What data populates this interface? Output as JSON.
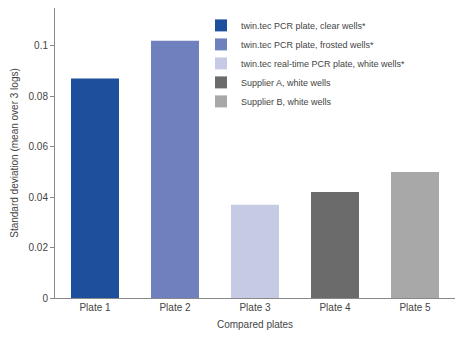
{
  "chart_data": {
    "type": "bar",
    "x_label": "Compared plates",
    "y_label": "Standard deviation (mean over 3 logs)",
    "categories": [
      "Plate 1",
      "Plate 2",
      "Plate 3",
      "Plate 4",
      "Plate 5"
    ],
    "series": [
      {
        "name": "twin.tec PCR plate, clear wells*",
        "color": "#1c4f9c",
        "values": [
          0.087,
          null,
          null,
          null,
          null
        ]
      },
      {
        "name": "twin.tec PCR plate, frosted wells*",
        "color": "#6e80bd",
        "values": [
          null,
          0.102,
          null,
          null,
          null
        ]
      },
      {
        "name": "twin.tec real-time PCR plate, white wells*",
        "color": "#c6cae4",
        "values": [
          null,
          null,
          0.037,
          null,
          null
        ]
      },
      {
        "name": "Supplier A, white wells",
        "color": "#6b6b6b",
        "values": [
          null,
          null,
          null,
          0.042,
          null
        ]
      },
      {
        "name": "Supplier B, white wells",
        "color": "#a8a8a8",
        "values": [
          null,
          null,
          null,
          null,
          0.05
        ]
      }
    ],
    "ylim": [
      0,
      0.115
    ],
    "yticks": [
      0,
      0.02,
      0.04,
      0.06,
      0.08,
      0.1
    ],
    "grid": false,
    "legend": "top right"
  }
}
